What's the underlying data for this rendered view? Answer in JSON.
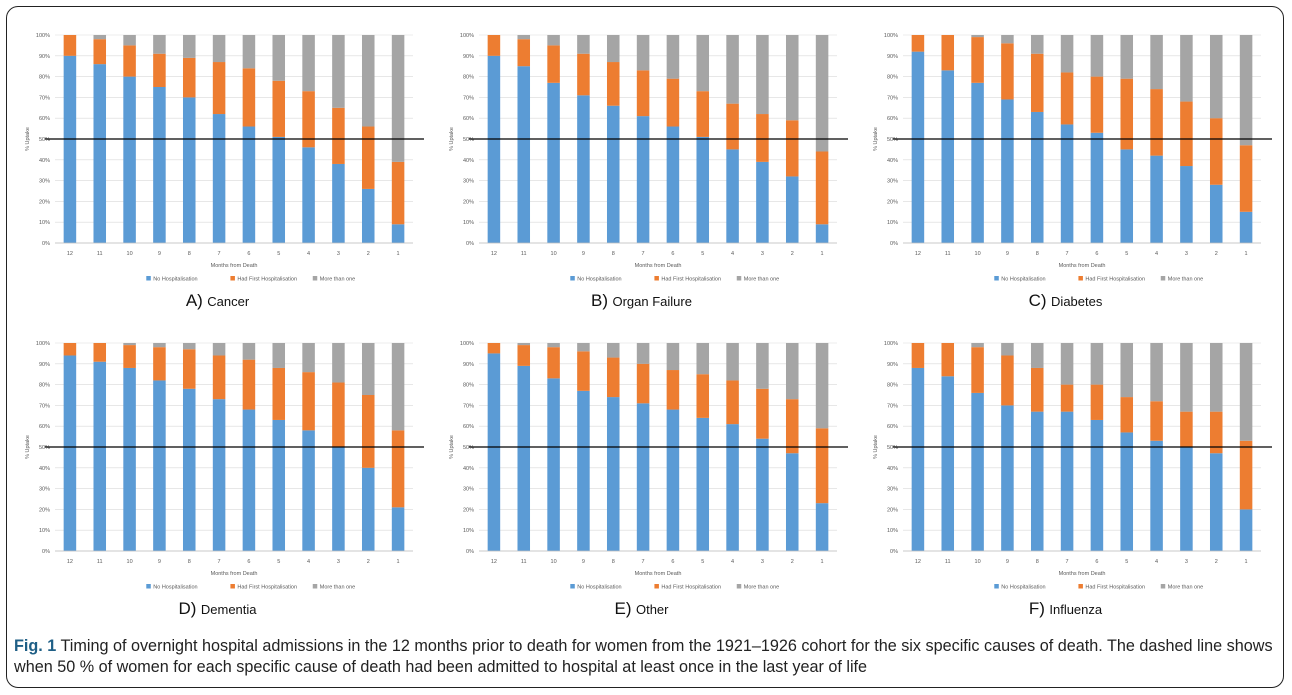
{
  "figure": {
    "caption_label": "Fig. 1",
    "caption_text": "Timing of overnight hospital admissions in the 12 months prior to death for women from the 1921–1926 cohort for the six specific causes of death. The dashed line shows when 50 % of women for each specific cause of death had been admitted to hospital at least once in the last year of life"
  },
  "legend": {
    "items": [
      "No Hospitalisation",
      "Had First Hospitalisation",
      "More than one"
    ],
    "colors": [
      "#5b9bd5",
      "#ed7d31",
      "#a5a5a5"
    ]
  },
  "chart_data": [
    {
      "type": "bar",
      "stacked": true,
      "panel_letter": "A)",
      "panel_name": "Cancer",
      "xlabel": "Months from Death",
      "ylabel": "% Uptake",
      "ylim": [
        0,
        100
      ],
      "yticks": [
        "0%",
        "10%",
        "20%",
        "30%",
        "40%",
        "50%",
        "60%",
        "70%",
        "80%",
        "90%",
        "100%"
      ],
      "reference_line": 50,
      "categories": [
        "12",
        "11",
        "10",
        "9",
        "8",
        "7",
        "6",
        "5",
        "4",
        "3",
        "2",
        "1"
      ],
      "series": [
        {
          "name": "No Hospitalisation",
          "values": [
            90,
            86,
            80,
            75,
            70,
            62,
            56,
            51,
            46,
            38,
            26,
            9
          ]
        },
        {
          "name": "Had First Hospitalisation",
          "values": [
            10,
            12,
            15,
            16,
            19,
            25,
            28,
            27,
            27,
            27,
            30,
            30
          ]
        },
        {
          "name": "More than one",
          "values": [
            0,
            2,
            5,
            9,
            11,
            13,
            16,
            22,
            27,
            35,
            44,
            61
          ]
        }
      ]
    },
    {
      "type": "bar",
      "stacked": true,
      "panel_letter": "B)",
      "panel_name": "Organ Failure",
      "xlabel": "Months from Death",
      "ylabel": "% Uptake",
      "ylim": [
        0,
        100
      ],
      "yticks": [
        "0%",
        "10%",
        "20%",
        "30%",
        "40%",
        "50%",
        "60%",
        "70%",
        "80%",
        "90%",
        "100%"
      ],
      "reference_line": 50,
      "categories": [
        "12",
        "11",
        "10",
        "9",
        "8",
        "7",
        "6",
        "5",
        "4",
        "3",
        "2",
        "1"
      ],
      "series": [
        {
          "name": "No Hospitalisation",
          "values": [
            90,
            85,
            77,
            71,
            66,
            61,
            56,
            51,
            45,
            39,
            32,
            9
          ]
        },
        {
          "name": "Had First Hospitalisation",
          "values": [
            10,
            13,
            18,
            20,
            21,
            22,
            23,
            22,
            22,
            23,
            27,
            35
          ]
        },
        {
          "name": "More than one",
          "values": [
            0,
            2,
            5,
            9,
            13,
            17,
            21,
            27,
            33,
            38,
            41,
            56
          ]
        }
      ]
    },
    {
      "type": "bar",
      "stacked": true,
      "panel_letter": "C)",
      "panel_name": "Diabetes",
      "xlabel": "Months from Death",
      "ylabel": "% Uptake",
      "ylim": [
        0,
        100
      ],
      "yticks": [
        "0%",
        "10%",
        "20%",
        "30%",
        "40%",
        "50%",
        "60%",
        "70%",
        "80%",
        "90%",
        "100%"
      ],
      "reference_line": 50,
      "categories": [
        "12",
        "11",
        "10",
        "9",
        "8",
        "7",
        "6",
        "5",
        "4",
        "3",
        "2",
        "1"
      ],
      "series": [
        {
          "name": "No Hospitalisation",
          "values": [
            92,
            83,
            77,
            69,
            63,
            57,
            53,
            45,
            42,
            37,
            28,
            15
          ]
        },
        {
          "name": "Had First Hospitalisation",
          "values": [
            8,
            17,
            22,
            27,
            28,
            25,
            27,
            34,
            32,
            31,
            32,
            32
          ]
        },
        {
          "name": "More than one",
          "values": [
            0,
            0,
            1,
            4,
            9,
            18,
            20,
            21,
            26,
            32,
            40,
            53
          ]
        }
      ]
    },
    {
      "type": "bar",
      "stacked": true,
      "panel_letter": "D)",
      "panel_name": "Dementia",
      "xlabel": "Months from Death",
      "ylabel": "% Uptake",
      "ylim": [
        0,
        100
      ],
      "yticks": [
        "0%",
        "10%",
        "20%",
        "30%",
        "40%",
        "50%",
        "60%",
        "70%",
        "80%",
        "90%",
        "100%"
      ],
      "reference_line": 50,
      "categories": [
        "12",
        "11",
        "10",
        "9",
        "8",
        "7",
        "6",
        "5",
        "4",
        "3",
        "2",
        "1"
      ],
      "series": [
        {
          "name": "No Hospitalisation",
          "values": [
            94,
            91,
            88,
            82,
            78,
            73,
            68,
            63,
            58,
            50,
            40,
            21
          ]
        },
        {
          "name": "Had First Hospitalisation",
          "values": [
            6,
            9,
            11,
            16,
            19,
            21,
            24,
            25,
            28,
            31,
            35,
            37
          ]
        },
        {
          "name": "More than one",
          "values": [
            0,
            0,
            1,
            2,
            3,
            6,
            8,
            12,
            14,
            19,
            25,
            42
          ]
        }
      ]
    },
    {
      "type": "bar",
      "stacked": true,
      "panel_letter": "E)",
      "panel_name": "Other",
      "xlabel": "Months from Death",
      "ylabel": "% Uptake",
      "ylim": [
        0,
        100
      ],
      "yticks": [
        "0%",
        "10%",
        "20%",
        "30%",
        "40%",
        "50%",
        "60%",
        "70%",
        "80%",
        "90%",
        "100%"
      ],
      "reference_line": 50,
      "categories": [
        "12",
        "11",
        "10",
        "9",
        "8",
        "7",
        "6",
        "5",
        "4",
        "3",
        "2",
        "1"
      ],
      "series": [
        {
          "name": "No Hospitalisation",
          "values": [
            95,
            89,
            83,
            77,
            74,
            71,
            68,
            64,
            61,
            54,
            47,
            23
          ]
        },
        {
          "name": "Had First Hospitalisation",
          "values": [
            5,
            10,
            15,
            19,
            19,
            19,
            19,
            21,
            21,
            24,
            26,
            36
          ]
        },
        {
          "name": "More than one",
          "values": [
            0,
            1,
            2,
            4,
            7,
            10,
            13,
            15,
            18,
            22,
            27,
            41
          ]
        }
      ]
    },
    {
      "type": "bar",
      "stacked": true,
      "panel_letter": "F)",
      "panel_name": "Influenza",
      "xlabel": "Months from Death",
      "ylabel": "% Uptake",
      "ylim": [
        0,
        100
      ],
      "yticks": [
        "0%",
        "10%",
        "20%",
        "30%",
        "40%",
        "50%",
        "60%",
        "70%",
        "80%",
        "90%",
        "100%"
      ],
      "reference_line": 50,
      "categories": [
        "12",
        "11",
        "10",
        "9",
        "8",
        "7",
        "6",
        "5",
        "4",
        "3",
        "2",
        "1"
      ],
      "series": [
        {
          "name": "No Hospitalisation",
          "values": [
            88,
            84,
            76,
            70,
            67,
            67,
            63,
            57,
            53,
            50,
            47,
            20
          ]
        },
        {
          "name": "Had First Hospitalisation",
          "values": [
            12,
            16,
            22,
            24,
            21,
            13,
            17,
            17,
            19,
            17,
            20,
            33
          ]
        },
        {
          "name": "More than one",
          "values": [
            0,
            0,
            2,
            6,
            12,
            20,
            20,
            26,
            28,
            33,
            33,
            47
          ]
        }
      ]
    }
  ]
}
